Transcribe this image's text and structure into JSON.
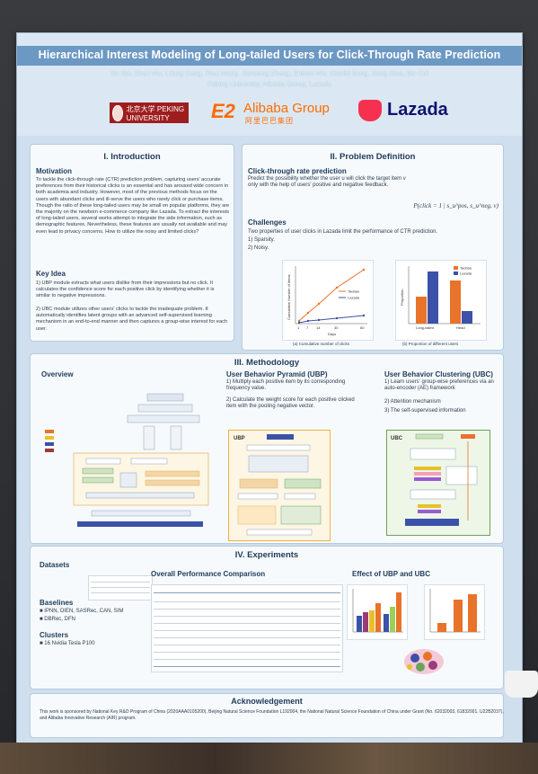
{
  "poster": {
    "title": "Hierarchical Interest Modeling of Long-tailed Users for Click-Through Rate Prediction",
    "authors": "Xu Xie, Zhen Wu, Lifang Deng, Xiao Wang, Jiancong Zhang, Zhihao Wu, Xiaolei Song, Jiang Xiao, Bin Cui",
    "affiliations": "Peking University, Alibaba Group, Lazada",
    "logos": {
      "pku": "北京大学 PEKING UNIVERSITY",
      "alibaba_mark": "E2",
      "alibaba_name": "Alibaba Group",
      "alibaba_cn": "阿里巴巴集团",
      "lazada": "Lazada"
    }
  },
  "intro": {
    "title": "I. Introduction",
    "motivation_heading": "Motivation",
    "motivation_text": "To tackle the click-through rate (CTR) prediction problem, capturing users' accurate preferences from their historical clicks is an essential and has aroused wide concern in both academia and industry. However, most of the previous methods focus on the users with abundant clicks and ill-serve the users who rarely click or purchase items. Though the ratio of these long-tailed users may be small on popular platforms, they are the majority on the newborn e-commerce company like Lazada. To extract the interests of long-tailed users, several works attempt to integrate the side information, such as demographic features. Nevertheless, these features are usually not available and may even lead to privacy concerns. How to utilize the noisy and limited clicks?",
    "key_idea_heading": "Key Idea",
    "key_idea_1": "1) UBP module extracts what users dislike from their impressions but no click. It calculates the confidence score for each positive click by identifying whether it is similar to negative impressions.",
    "key_idea_2": "2) UBC module utilizes other users' clicks to tackle the inadequate problem. It automatically identifies latent groups with an advanced self-supervised learning mechanism in an end-to-end manner and then captures a group-wise interest for each user."
  },
  "problem": {
    "title": "II. Problem Definition",
    "ctr_heading": "Click-through rate prediction",
    "ctr_text": "Predict the possibility whether the user u will click the target item v only with the help of users' positive and negative feedback.",
    "formula": "P(click = 1 | s_u^pos, s_u^neg, v)",
    "challenges_heading": "Challenges",
    "challenges_text": "Two properties of user clicks in Lazada limit the performance of CTR prediction.",
    "challenge_1": "1) Sparsity.",
    "challenge_2": "2) Noisy.",
    "fig_a_caption": "(a) Cumulative number of clicks",
    "fig_b_caption": "(b) Proportion of different users",
    "fig_a": {
      "xlabel": "Days",
      "ylabel": "Cumulative Number of Items",
      "xticks": [
        "1",
        "7",
        "14",
        "30",
        "60"
      ],
      "legend": [
        "Taobao",
        "Lazada"
      ]
    },
    "fig_b": {
      "ylabel": "Proportion",
      "categories": [
        "Long-tailed",
        "Head"
      ],
      "legend": [
        "Taobao",
        "Lazada"
      ]
    }
  },
  "methodology": {
    "title": "III. Methodology",
    "overview_heading": "Overview",
    "ubp_heading": "User Behavior Pyramid (UBP)",
    "ubp_1": "1) Multiply each positive item by its corresponding frequency value.",
    "ubp_2": "2) Calculate the weight score for each positive clicked item with the pooling negative vector.",
    "ubc_heading": "User Behavior Clustering (UBC)",
    "ubc_1": "1) Learn users' group-wise preferences via an auto-encoder (AE) framework",
    "ubc_2": "2) Attention mechanism",
    "ubc_3": "3) The self-supervised information",
    "ubp_label": "UBP",
    "ubc_label": "UBC"
  },
  "experiments": {
    "title": "IV. Experiments",
    "datasets_heading": "Datasets",
    "baselines_heading": "Baselines",
    "baselines_1": "IPNN, DIEN, SASRec, CAN, SIM",
    "baselines_2": "DBRec, DFN",
    "clusters_heading": "Clusters",
    "clusters_1": "16 Nvidia Tesla P100",
    "overall_heading": "Overall Performance Comparison",
    "effect_heading": "Effect of UBP and UBC"
  },
  "ack": {
    "title": "Acknowledgement",
    "text": "This work is sponsored by National Key R&D Program of China (2020AAA0105200), Beijing Natural Science Foundation L192004, the National Natural Science Foundation of China under Grant (No. 62032003, 61832001, U22B2037), and Alibaba Innovative Research (AIR) program."
  },
  "colors": {
    "title_band": "#6c98c4",
    "taobao": "#e8732a",
    "lazada": "#3b52a8"
  }
}
